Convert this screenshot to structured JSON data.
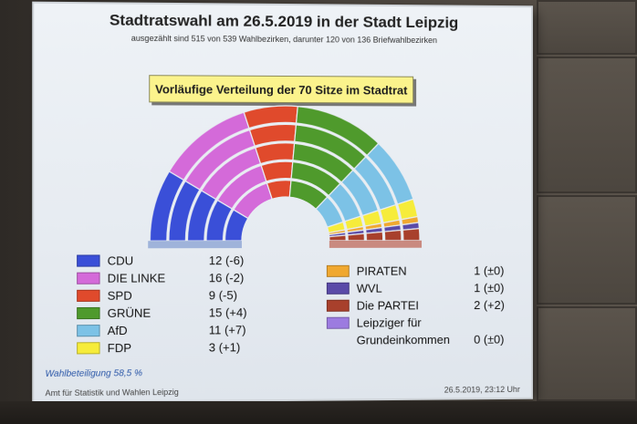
{
  "slide": {
    "title": "Stadtratswahl am 26.5.2019 in der Stadt Leipzig",
    "subtitle": "ausgezählt sind 515 von 539 Wahlbezirken, darunter 120 von 136 Briefwahlbezirken",
    "banner": "Vorläufige Verteilung der 70 Sitze im Stadtrat",
    "turnout": "Wahlbeteiligung 58,5 %",
    "footer_left": "Amt für Statistik und Wahlen Leipzig",
    "footer_right": "26.5.2019, 23:12 Uhr"
  },
  "parties_left": [
    {
      "name": "CDU",
      "value": "12 (-6)",
      "seats": 12,
      "color": "#3a4fd8"
    },
    {
      "name": "DIE LINKE",
      "value": "16 (-2)",
      "seats": 16,
      "color": "#d46ad9"
    },
    {
      "name": "SPD",
      "value": "9 (-5)",
      "seats": 9,
      "color": "#e04a2c"
    },
    {
      "name": "GRÜNE",
      "value": "15 (+4)",
      "seats": 15,
      "color": "#4f9a2c"
    },
    {
      "name": "AfD",
      "value": "11 (+7)",
      "seats": 11,
      "color": "#7cc2e6"
    },
    {
      "name": "FDP",
      "value": "3 (+1)",
      "seats": 3,
      "color": "#f6ec3a"
    }
  ],
  "parties_right": [
    {
      "name": "PIRATEN",
      "value": "1 (±0)",
      "seats": 1,
      "color": "#f0a830"
    },
    {
      "name": "WVL",
      "value": "1 (±0)",
      "seats": 1,
      "color": "#5a4aa8"
    },
    {
      "name": "Die PARTEI",
      "value": "2 (+2)",
      "seats": 2,
      "color": "#a8402c"
    },
    {
      "name": "Leipziger für",
      "name2": "Grundeinkommen",
      "value": "0 (±0)",
      "seats": 0,
      "color": "#9c7be0"
    }
  ]
}
